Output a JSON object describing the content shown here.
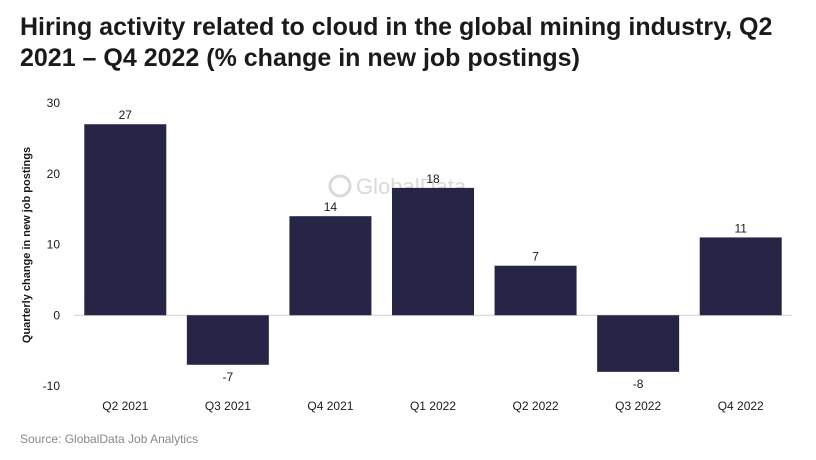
{
  "title": "Hiring activity related to cloud in the global mining industry, Q2 2021 – Q4 2022 (% change in new job postings)",
  "source": "Source: GlobalData Job Analytics",
  "watermark": "GlobalData.",
  "colors": {
    "bar": "#262546",
    "axis_text": "#1a1a1a",
    "zero_line": "#cfcfcf",
    "watermark": "#d9d9d9"
  },
  "chart_data": {
    "type": "bar",
    "categories": [
      "Q2 2021",
      "Q3 2021",
      "Q4 2021",
      "Q1 2022",
      "Q2 2022",
      "Q3 2022",
      "Q4 2022"
    ],
    "values": [
      27,
      -7,
      14,
      18,
      7,
      -8,
      11
    ],
    "data_labels": [
      "27",
      "-7",
      "14",
      "18",
      "7",
      "-8",
      "11"
    ],
    "ylabel": "Quarterly change in new job postings",
    "xlabel": "",
    "ylim": [
      -10,
      30
    ],
    "yticks": [
      -10,
      0,
      10,
      20,
      30
    ],
    "grid": false,
    "legend": "none"
  }
}
